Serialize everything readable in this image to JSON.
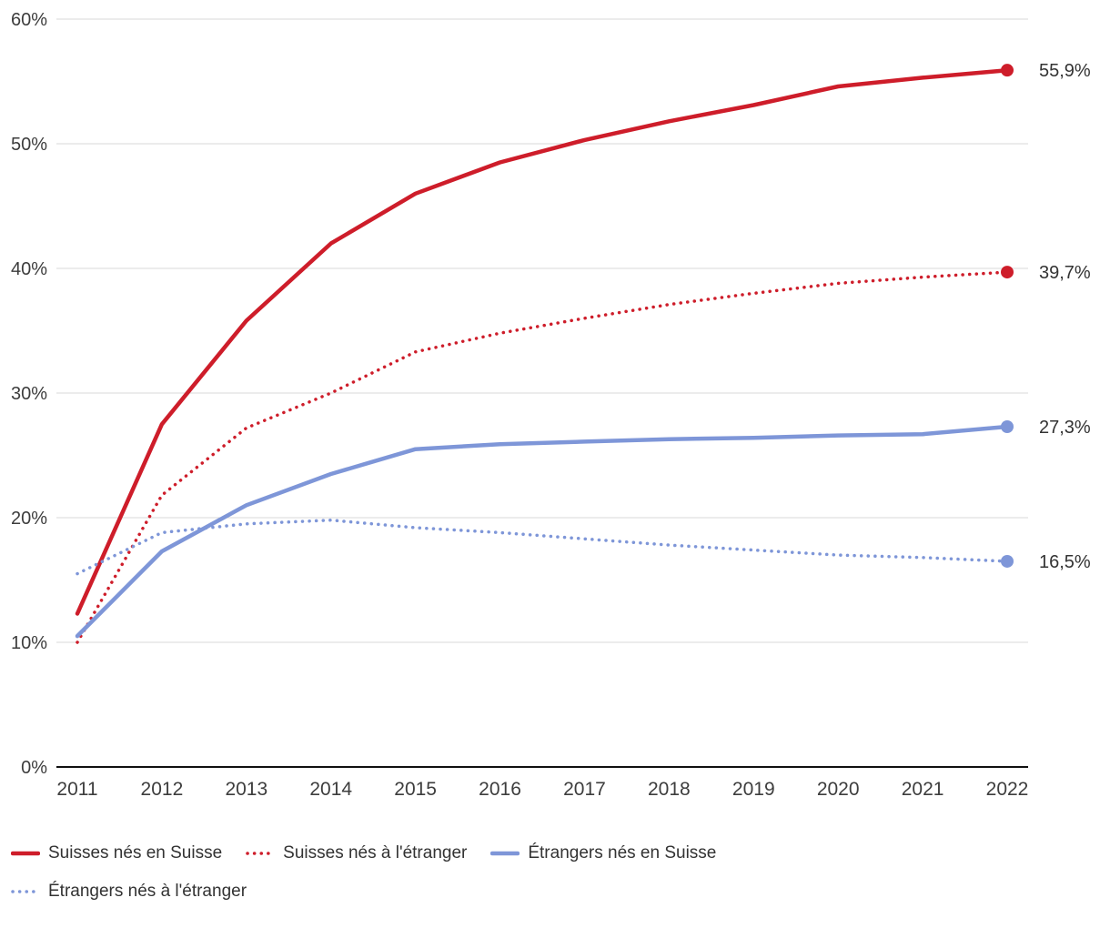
{
  "chart_data": {
    "type": "line",
    "categories": [
      "2011",
      "2012",
      "2013",
      "2014",
      "2015",
      "2016",
      "2017",
      "2018",
      "2019",
      "2020",
      "2021",
      "2022"
    ],
    "y_ticks": [
      "0%",
      "10%",
      "20%",
      "30%",
      "40%",
      "50%",
      "60%"
    ],
    "ylim": [
      0,
      60
    ],
    "grid": "horizontal",
    "legend_position": "bottom",
    "axis_color": "#111111",
    "grid_color": "#d8d8d8",
    "series": [
      {
        "id": "suisses-nes-en-suisse",
        "name": "Suisses nés en Suisse",
        "color": "#ce1d2a",
        "style": "solid",
        "end_label": "55,9%",
        "values": [
          12.3,
          27.5,
          35.8,
          42.0,
          46.0,
          48.5,
          50.3,
          51.8,
          53.1,
          54.6,
          55.3,
          55.9
        ]
      },
      {
        "id": "suisses-nes-a-letranger",
        "name": "Suisses nés à l'étranger",
        "color": "#ce1d2a",
        "style": "dotted",
        "end_label": "39,7%",
        "values": [
          10.0,
          21.8,
          27.2,
          30.0,
          33.3,
          34.8,
          36.0,
          37.1,
          38.0,
          38.8,
          39.3,
          39.7
        ]
      },
      {
        "id": "etrangers-nes-en-suisse",
        "name": "Étrangers nés en Suisse",
        "color": "#7e96d8",
        "style": "solid",
        "end_label": "27,3%",
        "values": [
          10.5,
          17.3,
          21.0,
          23.5,
          25.5,
          25.9,
          26.1,
          26.3,
          26.4,
          26.6,
          26.7,
          27.3
        ]
      },
      {
        "id": "etrangers-nes-a-letranger",
        "name": "Étrangers nés à l'étranger",
        "color": "#7e96d8",
        "style": "dotted",
        "end_label": "16,5%",
        "values": [
          15.5,
          18.8,
          19.5,
          19.8,
          19.2,
          18.8,
          18.3,
          17.8,
          17.4,
          17.0,
          16.8,
          16.5
        ]
      }
    ]
  }
}
